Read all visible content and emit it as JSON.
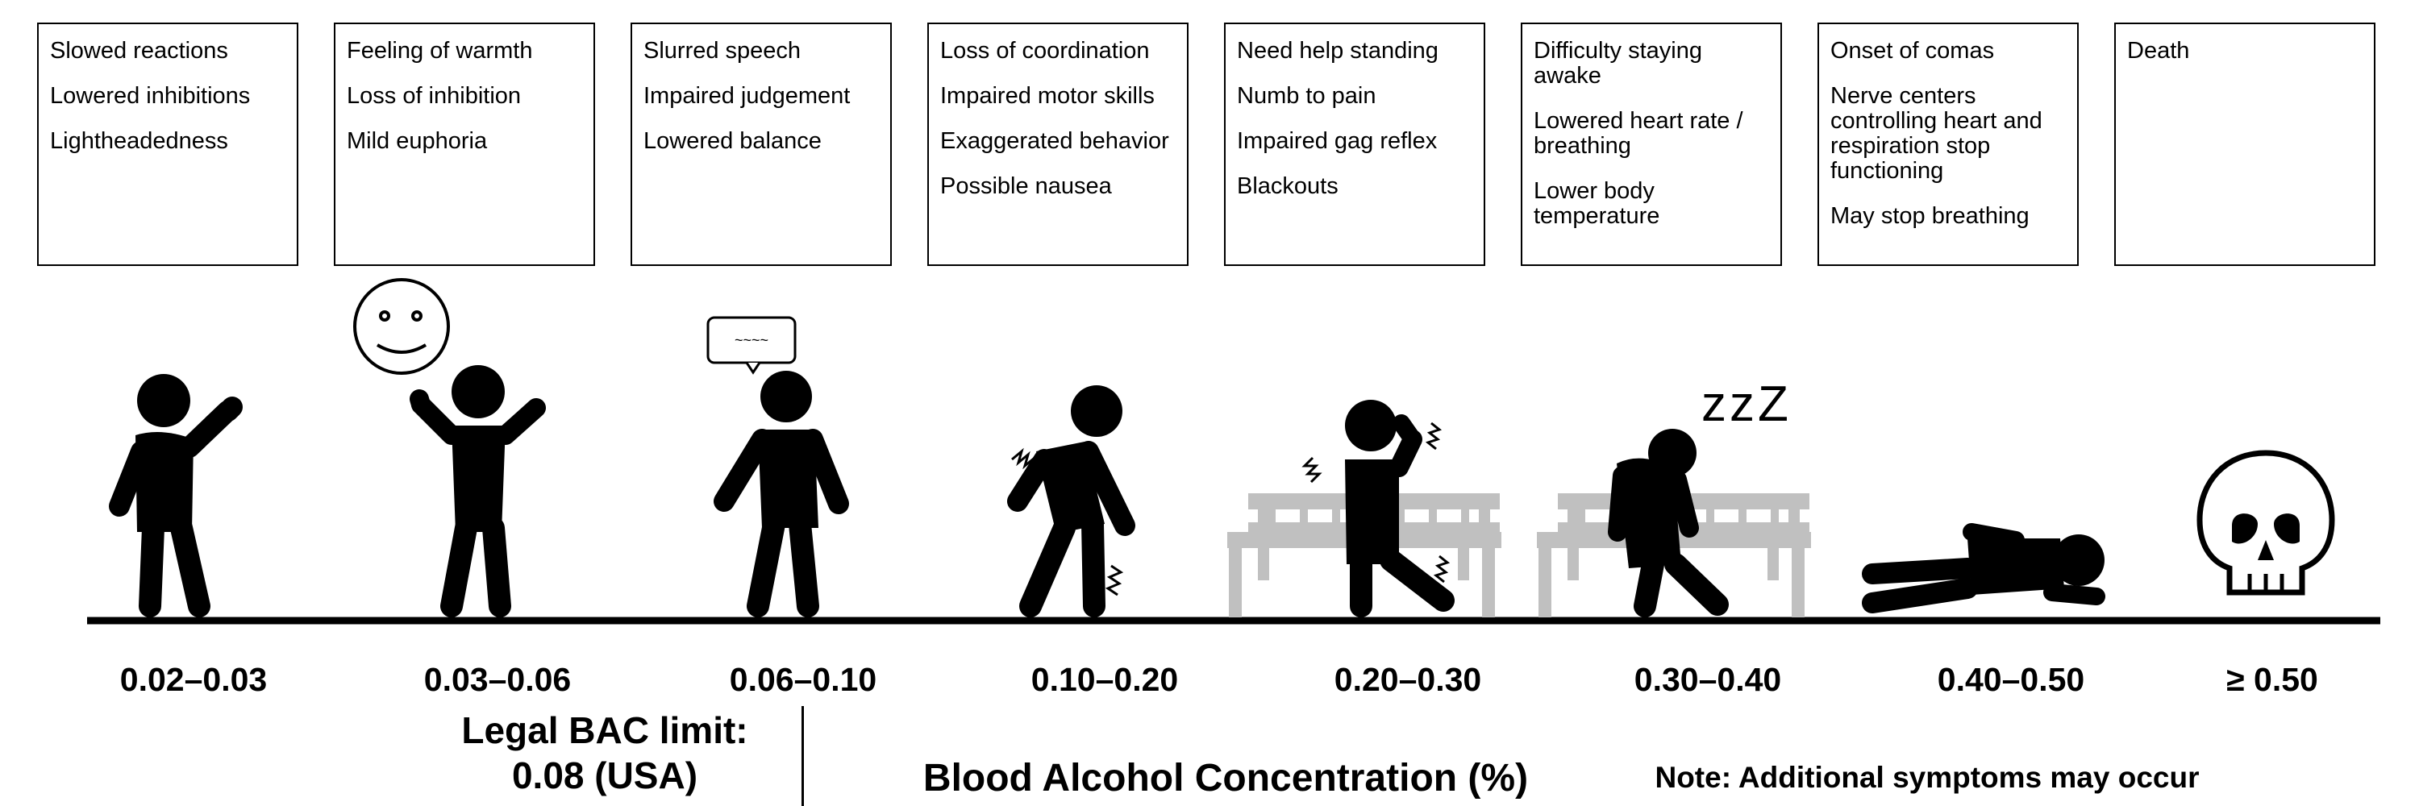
{
  "stages": [
    {
      "range": "0.02–0.03",
      "symptoms": [
        "Slowed reactions",
        "Lowered inhibitions",
        "Lightheadedness"
      ]
    },
    {
      "range": "0.03–0.06",
      "symptoms": [
        "Feeling of warmth",
        "Loss of inhibition",
        "Mild euphoria"
      ]
    },
    {
      "range": "0.06–0.10",
      "symptoms": [
        "Slurred speech",
        "Impaired judgement",
        "Lowered balance"
      ]
    },
    {
      "range": "0.10–0.20",
      "symptoms": [
        "Loss of coordination",
        "Impaired motor skills",
        "Exaggerated behavior",
        "Possible nausea"
      ]
    },
    {
      "range": "0.20–0.30",
      "symptoms": [
        "Need help standing",
        "Numb to pain",
        "Impaired gag reflex",
        "Blackouts"
      ]
    },
    {
      "range": "0.30–0.40",
      "symptoms": [
        "Difficulty staying awake",
        "Lowered heart rate / breathing",
        "Lower body temperature"
      ]
    },
    {
      "range": "0.40–0.50",
      "symptoms": [
        "Onset of comas",
        "Nerve centers controlling heart and respiration stop functioning",
        "May stop breathing"
      ]
    },
    {
      "range": "≥ 0.50",
      "symptoms": [
        "Death"
      ]
    }
  ],
  "legal_limit": {
    "line1": "Legal BAC limit:",
    "line2": "0.08 (USA)"
  },
  "axis_title": "Blood Alcohol Concentration (%)",
  "note": "Note: Additional symptoms may occur",
  "speech_bubble_text": "~~~~",
  "snore_text": "zzZ",
  "colors": {
    "figure": "#000000",
    "bench": "#c0c0c0",
    "box_border": "#000000"
  },
  "icons": [
    "waving-person-icon",
    "cheering-person-icon",
    "smiley-face-icon",
    "speech-bubble-icon",
    "stumbling-person-icon",
    "bench-icon",
    "sleeping-person-icon",
    "lying-person-icon",
    "skull-icon"
  ]
}
